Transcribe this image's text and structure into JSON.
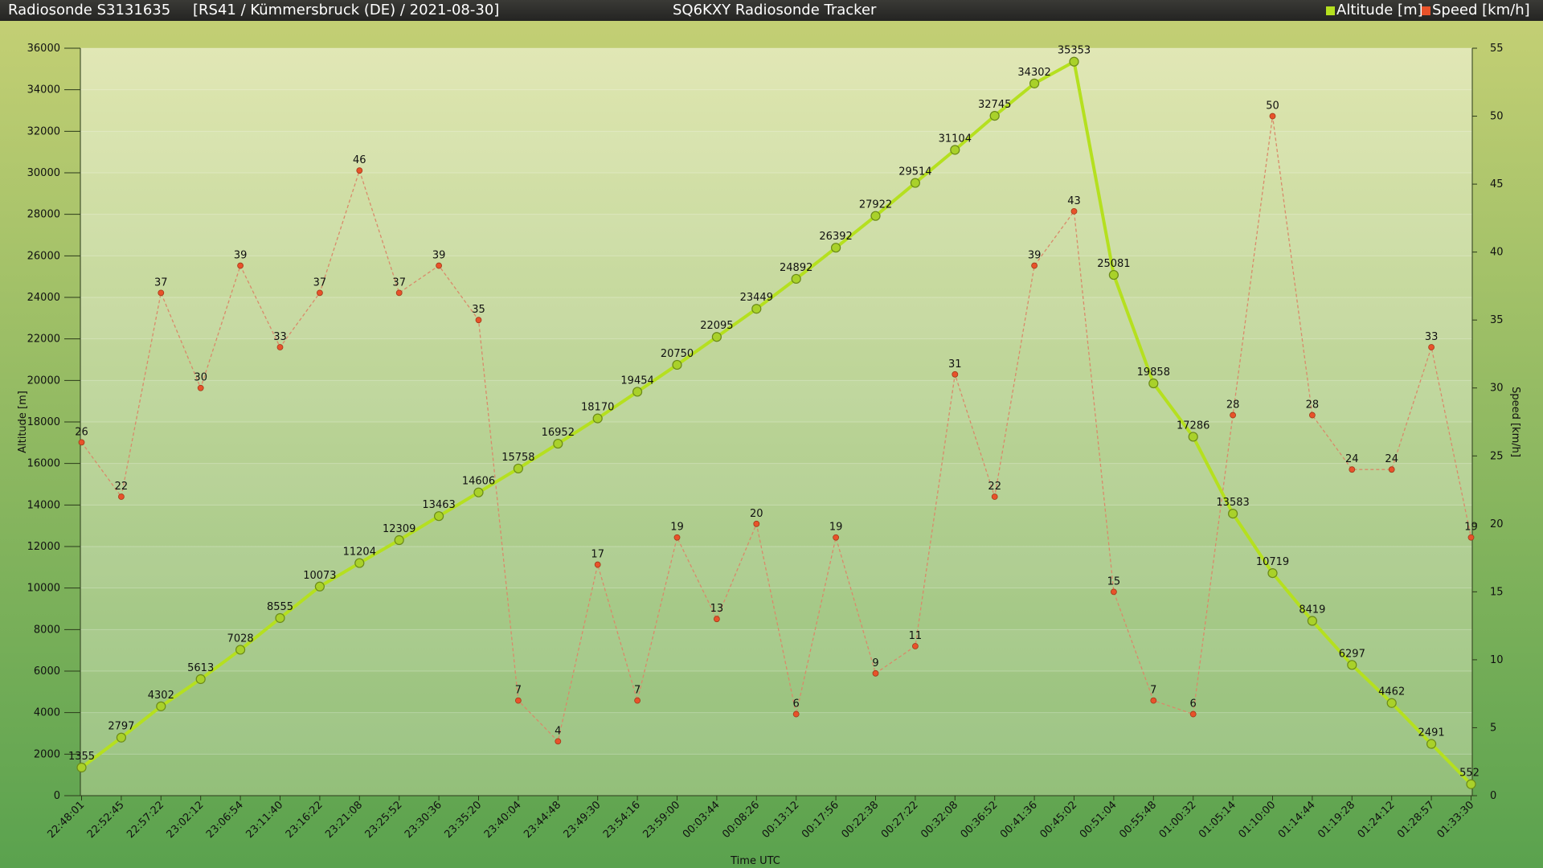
{
  "header": {
    "sonde": "Radiosonde S3131635",
    "site": "[RS41 / Kümmersbruck (DE) / 2021-08-30]",
    "tracker": "SQ6KXY Radiosonde Tracker",
    "legend_altitude": "Altitude [m]",
    "legend_speed": "Speed [km/h]"
  },
  "colors": {
    "altitude": "#b5e01f",
    "speed": "#e8522a",
    "speed_line": "#d98a6a"
  },
  "chart_data": {
    "type": "line",
    "xlabel": "Time UTC",
    "ylabel_left": "Altitude [m]",
    "ylabel_right": "Speed [km/h]",
    "ylim_left": [
      0,
      36000
    ],
    "ylim_right": [
      0,
      55
    ],
    "yticks_left": [
      "0",
      "2000",
      "4000",
      "6000",
      "8000",
      "10000",
      "12000",
      "14000",
      "16000",
      "18000",
      "20000",
      "22000",
      "24000",
      "26000",
      "28000",
      "30000",
      "32000",
      "34000",
      "36000"
    ],
    "yticks_right": [
      "0",
      "5",
      "10",
      "15",
      "20",
      "25",
      "30",
      "35",
      "40",
      "45",
      "50",
      "55"
    ],
    "grid": true,
    "legend": "top-right",
    "x": [
      "22:48:01",
      "22:52:45",
      "22:57:22",
      "23:02:12",
      "23:06:54",
      "23:11:40",
      "23:16:22",
      "23:21:08",
      "23:25:52",
      "23:30:36",
      "23:35:20",
      "23:40:04",
      "23:44:48",
      "23:49:30",
      "23:54:16",
      "23:59:00",
      "00:03:44",
      "00:08:26",
      "00:13:12",
      "00:17:56",
      "00:22:38",
      "00:27:22",
      "00:32:08",
      "00:36:52",
      "00:41:36",
      "00:45:02",
      "00:51:04",
      "00:55:48",
      "01:00:32",
      "01:05:14",
      "01:10:00",
      "01:14:44",
      "01:19:28",
      "01:24:12",
      "01:28:57",
      "01:33:30"
    ],
    "series": [
      {
        "name": "Altitude [m]",
        "axis": "left",
        "values": [
          1355,
          2797,
          4302,
          5613,
          7028,
          8555,
          10073,
          11204,
          12309,
          13463,
          14606,
          15758,
          16952,
          18170,
          19454,
          20750,
          22095,
          23449,
          24892,
          26392,
          27922,
          29514,
          31104,
          32745,
          34302,
          35353,
          25081,
          19858,
          17286,
          13583,
          10719,
          8419,
          6297,
          4462,
          2491,
          552
        ]
      },
      {
        "name": "Speed [km/h]",
        "axis": "right",
        "values": [
          26,
          22,
          37,
          30,
          39,
          33,
          37,
          46,
          37,
          39,
          35,
          7,
          4,
          17,
          7,
          19,
          13,
          20,
          6,
          19,
          9,
          11,
          31,
          22,
          39,
          43,
          15,
          7,
          6,
          28,
          50,
          28,
          24,
          24,
          33,
          19
        ]
      }
    ]
  }
}
